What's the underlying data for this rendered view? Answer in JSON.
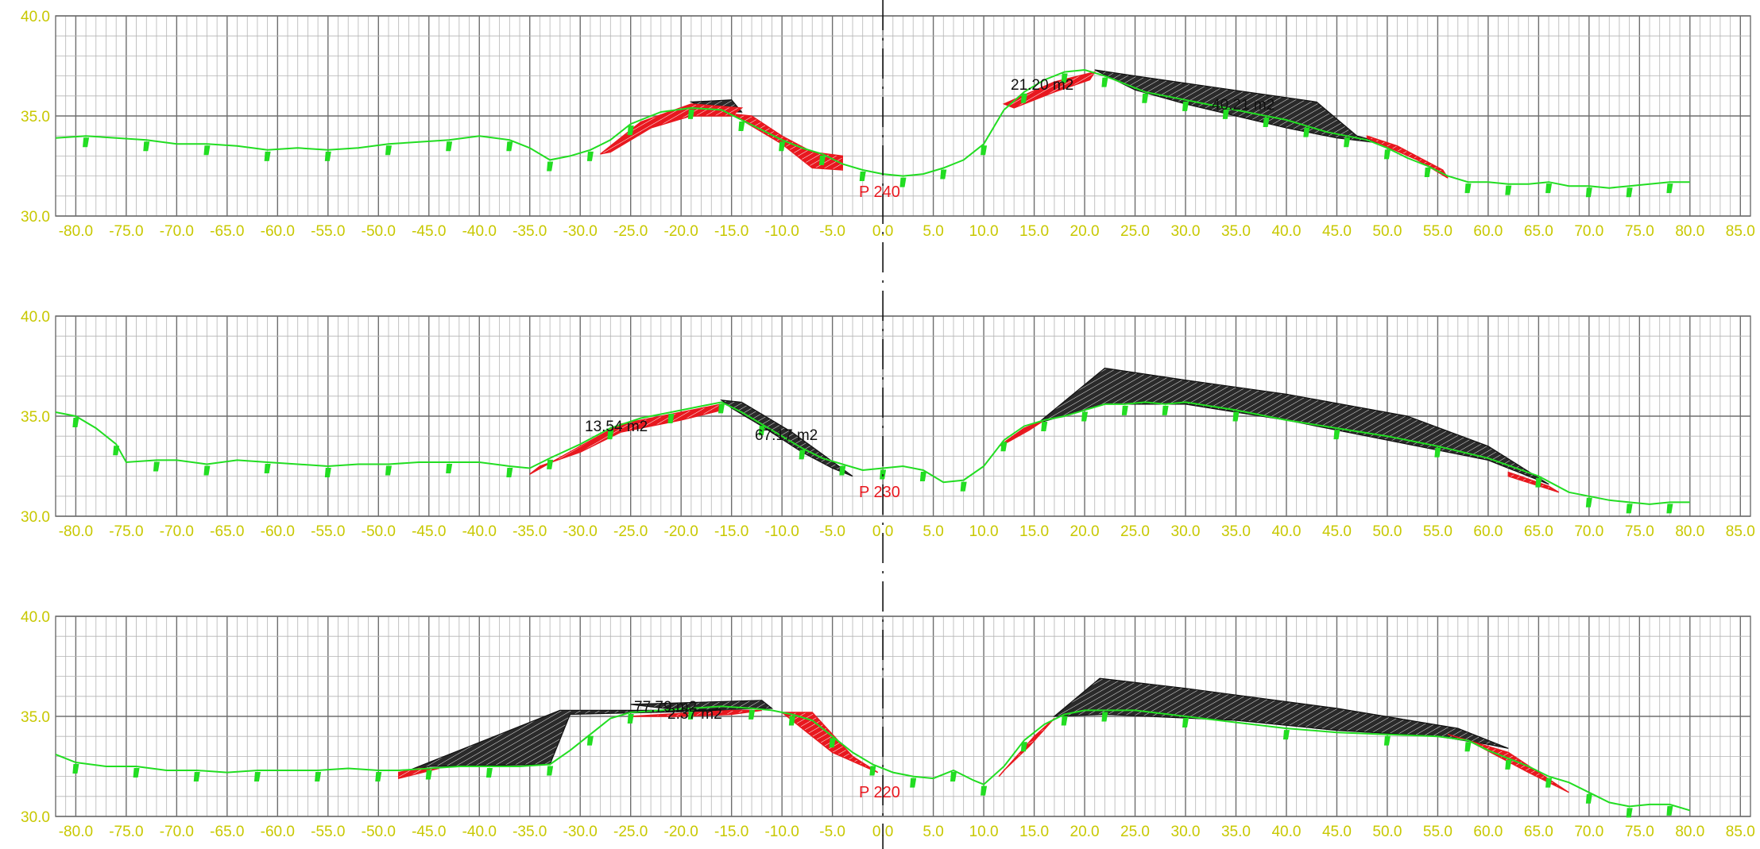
{
  "colors": {
    "background": "#ffffff",
    "grid_minor": "#b4b4b4",
    "grid_major": "#6e6e6e",
    "axis_text": "#c8c800",
    "ground": "#22dd22",
    "cut_fill": "#222222",
    "fill_fill": "#e8181f",
    "label": "#e8181f",
    "area_text": "#111111",
    "centerline": "#111111"
  },
  "chart_data": [
    {
      "type": "area",
      "title": "",
      "section_label": "P 240",
      "xlabel": "",
      "ylabel": "",
      "xlim": [
        -82,
        86
      ],
      "ylim": [
        30,
        40
      ],
      "x_ticks": [
        "-80.0",
        "-75.0",
        "-70.0",
        "-65.0",
        "-60.0",
        "-55.0",
        "-50.0",
        "-45.0",
        "-40.0",
        "-35.0",
        "-30.0",
        "-25.0",
        "-20.0",
        "-15.0",
        "-10.0",
        "-5.0",
        "0.0",
        "5.0",
        "10.0",
        "15.0",
        "20.0",
        "25.0",
        "30.0",
        "35.0",
        "40.0",
        "45.0",
        "50.0",
        "55.0",
        "60.0",
        "65.0",
        "70.0",
        "75.0",
        "80.0",
        "85.0"
      ],
      "y_ticks": [
        "30.0",
        "35.0",
        "40.0"
      ],
      "grid": true,
      "ground": {
        "x": [
          -82,
          -79,
          -76,
          -73,
          -70,
          -67,
          -64,
          -61,
          -58,
          -55,
          -52,
          -49,
          -46,
          -43,
          -40,
          -37,
          -35,
          -33,
          -31,
          -29,
          -27,
          -25,
          -22,
          -19,
          -16,
          -14,
          -12,
          -10,
          -8,
          -6,
          -4,
          -2,
          0,
          2,
          4,
          6,
          8,
          10,
          12,
          14,
          16,
          18,
          20,
          22,
          24,
          26,
          28,
          30,
          32,
          34,
          36,
          38,
          40,
          42,
          44,
          46,
          48,
          50,
          52,
          54,
          56,
          58,
          60,
          62,
          64,
          66,
          68,
          70,
          72,
          74,
          76,
          78,
          80
        ],
        "y": [
          33.9,
          34.0,
          33.9,
          33.8,
          33.6,
          33.6,
          33.5,
          33.3,
          33.4,
          33.3,
          33.4,
          33.6,
          33.7,
          33.8,
          34.0,
          33.8,
          33.4,
          32.8,
          33.0,
          33.3,
          33.8,
          34.6,
          35.2,
          35.4,
          35.3,
          34.8,
          34.3,
          33.8,
          33.4,
          33.1,
          32.6,
          32.3,
          32.1,
          32.0,
          32.1,
          32.4,
          32.8,
          33.6,
          35.3,
          36.2,
          36.8,
          37.2,
          37.3,
          37.0,
          36.6,
          36.2,
          36.0,
          35.8,
          35.6,
          35.4,
          35.2,
          35.0,
          34.8,
          34.5,
          34.2,
          34.0,
          33.8,
          33.4,
          32.9,
          32.5,
          32.0,
          31.7,
          31.7,
          31.6,
          31.6,
          31.7,
          31.5,
          31.5,
          31.4,
          31.5,
          31.6,
          31.7,
          31.7
        ]
      },
      "cut": [
        [
          [
            -19,
            35.7
          ],
          [
            -15,
            35.8
          ],
          [
            -14,
            35.2
          ],
          [
            -17,
            35.2
          ]
        ],
        [
          [
            21,
            37.3
          ],
          [
            25,
            37.0
          ],
          [
            43,
            35.7
          ],
          [
            47,
            34.0
          ],
          [
            50,
            33.6
          ],
          [
            45,
            33.9
          ],
          [
            40,
            34.4
          ],
          [
            35,
            35.0
          ],
          [
            30,
            35.6
          ],
          [
            25,
            36.3
          ]
        ]
      ],
      "fill": [
        [
          [
            -28,
            33.1
          ],
          [
            -24,
            34.7
          ],
          [
            -19,
            35.6
          ],
          [
            -14,
            35.4
          ],
          [
            -15,
            35.0
          ],
          [
            -19,
            35.0
          ],
          [
            -23,
            34.4
          ],
          [
            -27,
            33.2
          ]
        ],
        [
          [
            -15,
            35.1
          ],
          [
            -10,
            33.6
          ],
          [
            -7,
            32.4
          ],
          [
            -4,
            32.3
          ],
          [
            -4,
            33.0
          ],
          [
            -7,
            33.2
          ],
          [
            -10,
            34.0
          ],
          [
            -13,
            35.0
          ]
        ],
        [
          [
            12,
            35.6
          ],
          [
            17,
            36.7
          ],
          [
            21,
            37.2
          ],
          [
            20.5,
            36.8
          ],
          [
            17,
            36.2
          ],
          [
            13,
            35.4
          ]
        ],
        [
          [
            48,
            33.9
          ],
          [
            53,
            32.8
          ],
          [
            56,
            31.9
          ],
          [
            55.5,
            32.3
          ],
          [
            51,
            33.5
          ],
          [
            48,
            34.0
          ]
        ]
      ],
      "annotations": [
        "21.20 m2",
        "40.21 m2"
      ]
    },
    {
      "type": "area",
      "title": "",
      "section_label": "P 230",
      "xlabel": "",
      "ylabel": "",
      "xlim": [
        -82,
        86
      ],
      "ylim": [
        30,
        40
      ],
      "x_ticks": [
        "-80.0",
        "-75.0",
        "-70.0",
        "-65.0",
        "-60.0",
        "-55.0",
        "-50.0",
        "-45.0",
        "-40.0",
        "-35.0",
        "-30.0",
        "-25.0",
        "-20.0",
        "-15.0",
        "-10.0",
        "-5.0",
        "0.0",
        "5.0",
        "10.0",
        "15.0",
        "20.0",
        "25.0",
        "30.0",
        "35.0",
        "40.0",
        "45.0",
        "50.0",
        "55.0",
        "60.0",
        "65.0",
        "70.0",
        "75.0",
        "80.0",
        "85.0"
      ],
      "y_ticks": [
        "30.0",
        "35.0",
        "40.0"
      ],
      "grid": true,
      "ground": {
        "x": [
          -82,
          -80,
          -78,
          -76,
          -75,
          -72,
          -70,
          -67,
          -64,
          -61,
          -58,
          -55,
          -52,
          -49,
          -46,
          -43,
          -40,
          -37,
          -35,
          -33,
          -30,
          -27,
          -24,
          -21,
          -18,
          -16,
          -14,
          -12,
          -10,
          -8,
          -6,
          -4,
          -2,
          0,
          2,
          4,
          6,
          8,
          10,
          12,
          14,
          16,
          18,
          20,
          22,
          24,
          26,
          28,
          30,
          35,
          40,
          45,
          50,
          55,
          60,
          65,
          68,
          70,
          72,
          74,
          76,
          78,
          80
        ],
        "y": [
          35.2,
          35.0,
          34.4,
          33.6,
          32.7,
          32.8,
          32.8,
          32.6,
          32.8,
          32.7,
          32.6,
          32.5,
          32.6,
          32.6,
          32.7,
          32.7,
          32.7,
          32.5,
          32.4,
          32.9,
          33.6,
          34.4,
          34.9,
          35.2,
          35.5,
          35.7,
          35.2,
          34.6,
          34.0,
          33.4,
          32.9,
          32.6,
          32.3,
          32.4,
          32.5,
          32.3,
          31.7,
          31.8,
          32.5,
          33.8,
          34.5,
          34.8,
          35.0,
          35.3,
          35.6,
          35.6,
          35.7,
          35.6,
          35.7,
          35.3,
          34.8,
          34.4,
          34.0,
          33.5,
          32.9,
          32.0,
          31.2,
          31.0,
          30.8,
          30.7,
          30.6,
          30.7,
          30.7
        ]
      },
      "cut": [
        [
          [
            -16,
            35.8
          ],
          [
            -14,
            35.7
          ],
          [
            -9,
            34.2
          ],
          [
            -3,
            32.0
          ],
          [
            -5,
            32.4
          ],
          [
            -8,
            33.2
          ],
          [
            -12,
            34.5
          ],
          [
            -15,
            35.4
          ]
        ],
        [
          [
            15,
            34.5
          ],
          [
            22,
            37.4
          ],
          [
            30,
            36.8
          ],
          [
            40,
            36.1
          ],
          [
            52,
            35.0
          ],
          [
            60,
            33.5
          ],
          [
            66,
            31.6
          ],
          [
            60,
            32.8
          ],
          [
            50,
            33.8
          ],
          [
            40,
            34.8
          ],
          [
            30,
            35.6
          ],
          [
            22,
            35.6
          ],
          [
            15,
            34.6
          ]
        ]
      ],
      "fill": [
        [
          [
            -35,
            32.1
          ],
          [
            -30,
            33.5
          ],
          [
            -26,
            34.6
          ],
          [
            -20,
            35.2
          ],
          [
            -16,
            35.6
          ],
          [
            -16,
            35.3
          ],
          [
            -20,
            34.8
          ],
          [
            -26,
            34.2
          ],
          [
            -30,
            33.2
          ],
          [
            -34,
            32.5
          ]
        ],
        [
          [
            11.5,
            33.5
          ],
          [
            14,
            34.4
          ],
          [
            16,
            34.8
          ],
          [
            14.5,
            34.3
          ],
          [
            12,
            33.6
          ]
        ],
        [
          [
            62,
            32.0
          ],
          [
            67,
            31.2
          ],
          [
            66,
            31.5
          ],
          [
            62,
            32.2
          ]
        ]
      ],
      "annotations": [
        "13.54 m2",
        "67.17 m2"
      ]
    },
    {
      "type": "area",
      "title": "",
      "section_label": "P 220",
      "xlabel": "",
      "ylabel": "",
      "xlim": [
        -82,
        86
      ],
      "ylim": [
        30,
        40
      ],
      "x_ticks": [
        "-80.0",
        "-75.0",
        "-70.0",
        "-65.0",
        "-60.0",
        "-55.0",
        "-50.0",
        "-45.0",
        "-40.0",
        "-35.0",
        "-30.0",
        "-25.0",
        "-20.0",
        "-15.0",
        "-10.0",
        "-5.0",
        "0.0",
        "5.0",
        "10.0",
        "15.0",
        "20.0",
        "25.0",
        "30.0",
        "35.0",
        "40.0",
        "45.0",
        "50.0",
        "55.0",
        "60.0",
        "65.0",
        "70.0",
        "75.0",
        "80.0",
        "85.0"
      ],
      "y_ticks": [
        "30.0",
        "35.0",
        "40.0"
      ],
      "grid": true,
      "ground": {
        "x": [
          -82,
          -80,
          -77,
          -74,
          -71,
          -68,
          -65,
          -62,
          -59,
          -56,
          -53,
          -50,
          -48,
          -45,
          -42,
          -39,
          -36,
          -33,
          -31,
          -29,
          -27,
          -25,
          -22,
          -19,
          -16,
          -13,
          -11,
          -9,
          -7,
          -5,
          -3,
          -1,
          1,
          3,
          5,
          7,
          9,
          10,
          12,
          14,
          16,
          18,
          20,
          22,
          25,
          30,
          35,
          40,
          45,
          50,
          55,
          58,
          60,
          62,
          64,
          66,
          68,
          70,
          72,
          74,
          76,
          78,
          80
        ],
        "y": [
          33.1,
          32.7,
          32.5,
          32.5,
          32.3,
          32.3,
          32.2,
          32.3,
          32.3,
          32.3,
          32.4,
          32.3,
          32.3,
          32.4,
          32.5,
          32.5,
          32.5,
          32.6,
          33.3,
          34.1,
          34.9,
          35.2,
          35.3,
          35.4,
          35.5,
          35.4,
          35.3,
          35.1,
          34.8,
          34.0,
          33.2,
          32.6,
          32.2,
          32.0,
          31.9,
          32.3,
          31.8,
          31.6,
          32.5,
          33.8,
          34.6,
          35.1,
          35.3,
          35.3,
          35.3,
          35.0,
          34.7,
          34.4,
          34.2,
          34.1,
          34.0,
          33.8,
          33.3,
          32.9,
          32.5,
          32.0,
          31.7,
          31.2,
          30.7,
          30.5,
          30.6,
          30.6,
          30.3
        ]
      },
      "cut": [
        [
          [
            -48,
            32.1
          ],
          [
            -32,
            35.3
          ],
          [
            -14,
            35.3
          ],
          [
            -31,
            35.1
          ],
          [
            -33,
            32.6
          ],
          [
            -45,
            32.5
          ]
        ],
        [
          [
            -25,
            35.6
          ],
          [
            -12,
            35.8
          ],
          [
            -11,
            35.4
          ],
          [
            -20,
            35.3
          ]
        ],
        [
          [
            17,
            35.0
          ],
          [
            21.5,
            36.9
          ],
          [
            30,
            36.4
          ],
          [
            45,
            35.4
          ],
          [
            57,
            34.4
          ],
          [
            62,
            33.4
          ],
          [
            60,
            33.6
          ],
          [
            55,
            34.0
          ],
          [
            45,
            34.3
          ],
          [
            35,
            34.8
          ],
          [
            22,
            35.1
          ]
        ]
      ],
      "fill": [
        [
          [
            -48,
            31.9
          ],
          [
            -44,
            32.4
          ],
          [
            -46,
            32.4
          ],
          [
            -48,
            32.2
          ]
        ],
        [
          [
            -25,
            35.0
          ],
          [
            -15,
            35.3
          ],
          [
            -12,
            35.3
          ],
          [
            -15,
            35.1
          ],
          [
            -20,
            35.0
          ]
        ],
        [
          [
            -10,
            35.2
          ],
          [
            -7,
            35.2
          ],
          [
            -3,
            33.0
          ],
          [
            -0.5,
            32.2
          ],
          [
            -5,
            33.2
          ],
          [
            -9,
            34.8
          ]
        ],
        [
          [
            11.5,
            32.0
          ],
          [
            15,
            34.0
          ],
          [
            17,
            34.9
          ],
          [
            14.5,
            33.5
          ],
          [
            12,
            32.3
          ]
        ],
        [
          [
            56,
            34.1
          ],
          [
            62,
            33.2
          ],
          [
            68,
            31.2
          ],
          [
            64,
            32.2
          ],
          [
            58,
            33.8
          ]
        ]
      ],
      "annotations": [
        "77.79 m2",
        "2.37 m2"
      ]
    }
  ]
}
